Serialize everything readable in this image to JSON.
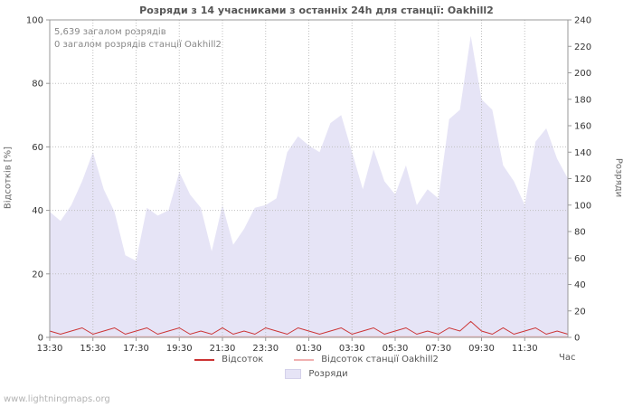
{
  "page": {
    "title": "Розряди з 14 учасниками з останніх 24h для станції: Oakhill2",
    "watermark": "www.lightningmaps.org"
  },
  "annotations": {
    "total": "5,639 загалом розрядів",
    "station_total": "0 загалом розрядів станції Oakhill2"
  },
  "axes": {
    "left_label": "Відсотків [%]",
    "right_label": "Розряди",
    "x_label": "Час"
  },
  "legend": {
    "percent": "Відсоток",
    "station_percent": "Відсоток станції Oakhill2",
    "discharges": "Розряди"
  },
  "colors": {
    "area": "#e6e4f6",
    "percent_line": "#cc3333",
    "station_line": "#f0b0b0",
    "grid": "#c0c0c0",
    "axis": "#999999",
    "tick_text": "#333333"
  },
  "chart_data": {
    "type": "area",
    "title": "Розряди з 14 учасниками з останніх 24h для станції: Oakhill2",
    "total_discharges": 5639,
    "station_total_discharges": 0,
    "participants": 14,
    "station": "Oakhill2",
    "grid": true,
    "legend_position": "bottom",
    "x": [
      "13:30",
      "14:00",
      "14:30",
      "15:00",
      "15:30",
      "16:00",
      "16:30",
      "17:00",
      "17:30",
      "18:00",
      "18:30",
      "19:00",
      "19:30",
      "20:00",
      "20:30",
      "21:00",
      "21:30",
      "22:00",
      "22:30",
      "23:00",
      "23:30",
      "00:00",
      "00:30",
      "01:00",
      "01:30",
      "02:00",
      "02:30",
      "03:00",
      "03:30",
      "04:00",
      "04:30",
      "05:00",
      "05:30",
      "06:00",
      "06:30",
      "07:00",
      "07:30",
      "08:00",
      "08:30",
      "09:00",
      "09:30",
      "10:00",
      "10:30",
      "11:00",
      "11:30",
      "12:00",
      "12:30",
      "13:00",
      "13:30"
    ],
    "x_tick_labels": [
      "13:30",
      "15:30",
      "17:30",
      "19:30",
      "21:30",
      "23:30",
      "01:30",
      "03:30",
      "05:30",
      "07:30",
      "09:30",
      "11:30"
    ],
    "xlabel": "Час",
    "left_axis": {
      "label": "Відсотків [%]",
      "range": [
        0,
        100
      ],
      "ticks": [
        0,
        20,
        40,
        60,
        80,
        100
      ]
    },
    "right_axis": {
      "label": "Розряди",
      "range": [
        0,
        240
      ],
      "ticks": [
        0,
        20,
        40,
        60,
        80,
        100,
        120,
        140,
        160,
        180,
        200,
        220,
        240
      ]
    },
    "series": [
      {
        "name": "Розряди",
        "type": "area",
        "axis": "right",
        "color": "#e6e4f6",
        "values": [
          95,
          88,
          100,
          118,
          140,
          112,
          95,
          62,
          58,
          98,
          92,
          96,
          125,
          108,
          98,
          65,
          100,
          70,
          82,
          98,
          100,
          105,
          140,
          152,
          145,
          140,
          162,
          168,
          140,
          112,
          142,
          118,
          108,
          130,
          100,
          112,
          105,
          165,
          172,
          228,
          180,
          172,
          130,
          118,
          100,
          148,
          158,
          135,
          120
        ]
      },
      {
        "name": "Відсоток",
        "type": "line",
        "axis": "left",
        "color": "#cc3333",
        "values": [
          2,
          1,
          2,
          3,
          1,
          2,
          3,
          1,
          2,
          3,
          1,
          2,
          3,
          1,
          2,
          1,
          3,
          1,
          2,
          1,
          3,
          2,
          1,
          3,
          2,
          1,
          2,
          3,
          1,
          2,
          3,
          1,
          2,
          3,
          1,
          2,
          1,
          3,
          2,
          5,
          2,
          1,
          3,
          1,
          2,
          3,
          1,
          2,
          1
        ]
      },
      {
        "name": "Відсоток станції Oakhill2",
        "type": "line",
        "axis": "left",
        "color": "#f0b0b0",
        "values": [
          0,
          0,
          0,
          0,
          0,
          0,
          0,
          0,
          0,
          0,
          0,
          0,
          0,
          0,
          0,
          0,
          0,
          0,
          0,
          0,
          0,
          0,
          0,
          0,
          0,
          0,
          0,
          0,
          0,
          0,
          0,
          0,
          0,
          0,
          0,
          0,
          0,
          0,
          0,
          0,
          0,
          0,
          0,
          0,
          0,
          0,
          0,
          0,
          0
        ]
      }
    ]
  }
}
